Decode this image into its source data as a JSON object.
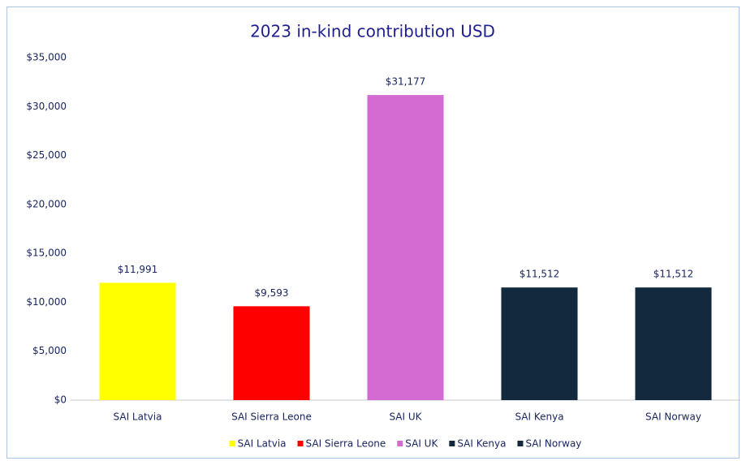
{
  "chart_data": {
    "type": "bar",
    "title": "2023 in-kind contribution USD",
    "categories": [
      "SAI Latvia",
      "SAI Sierra Leone",
      "SAI UK",
      "SAI Kenya",
      "SAI Norway"
    ],
    "values": [
      11991,
      9593,
      31177,
      11512,
      11512
    ],
    "value_labels": [
      "$11,991",
      "$9,593",
      "$31,177",
      "$11,512",
      "$11,512"
    ],
    "colors": [
      "#ffff00",
      "#ff0000",
      "#d36bd3",
      "#132a3e",
      "#132a3e"
    ],
    "ylim": [
      0,
      35000
    ],
    "yticks": [
      {
        "value": 0,
        "label": "$0"
      },
      {
        "value": 5000,
        "label": "$5,000"
      },
      {
        "value": 10000,
        "label": "$10,000"
      },
      {
        "value": 15000,
        "label": "$15,000"
      },
      {
        "value": 20000,
        "label": "$20,000"
      },
      {
        "value": 25000,
        "label": "$25,000"
      },
      {
        "value": 30000,
        "label": "$30,000"
      },
      {
        "value": 35000,
        "label": "$35,000"
      }
    ],
    "grid": false,
    "legend": "bottom"
  }
}
